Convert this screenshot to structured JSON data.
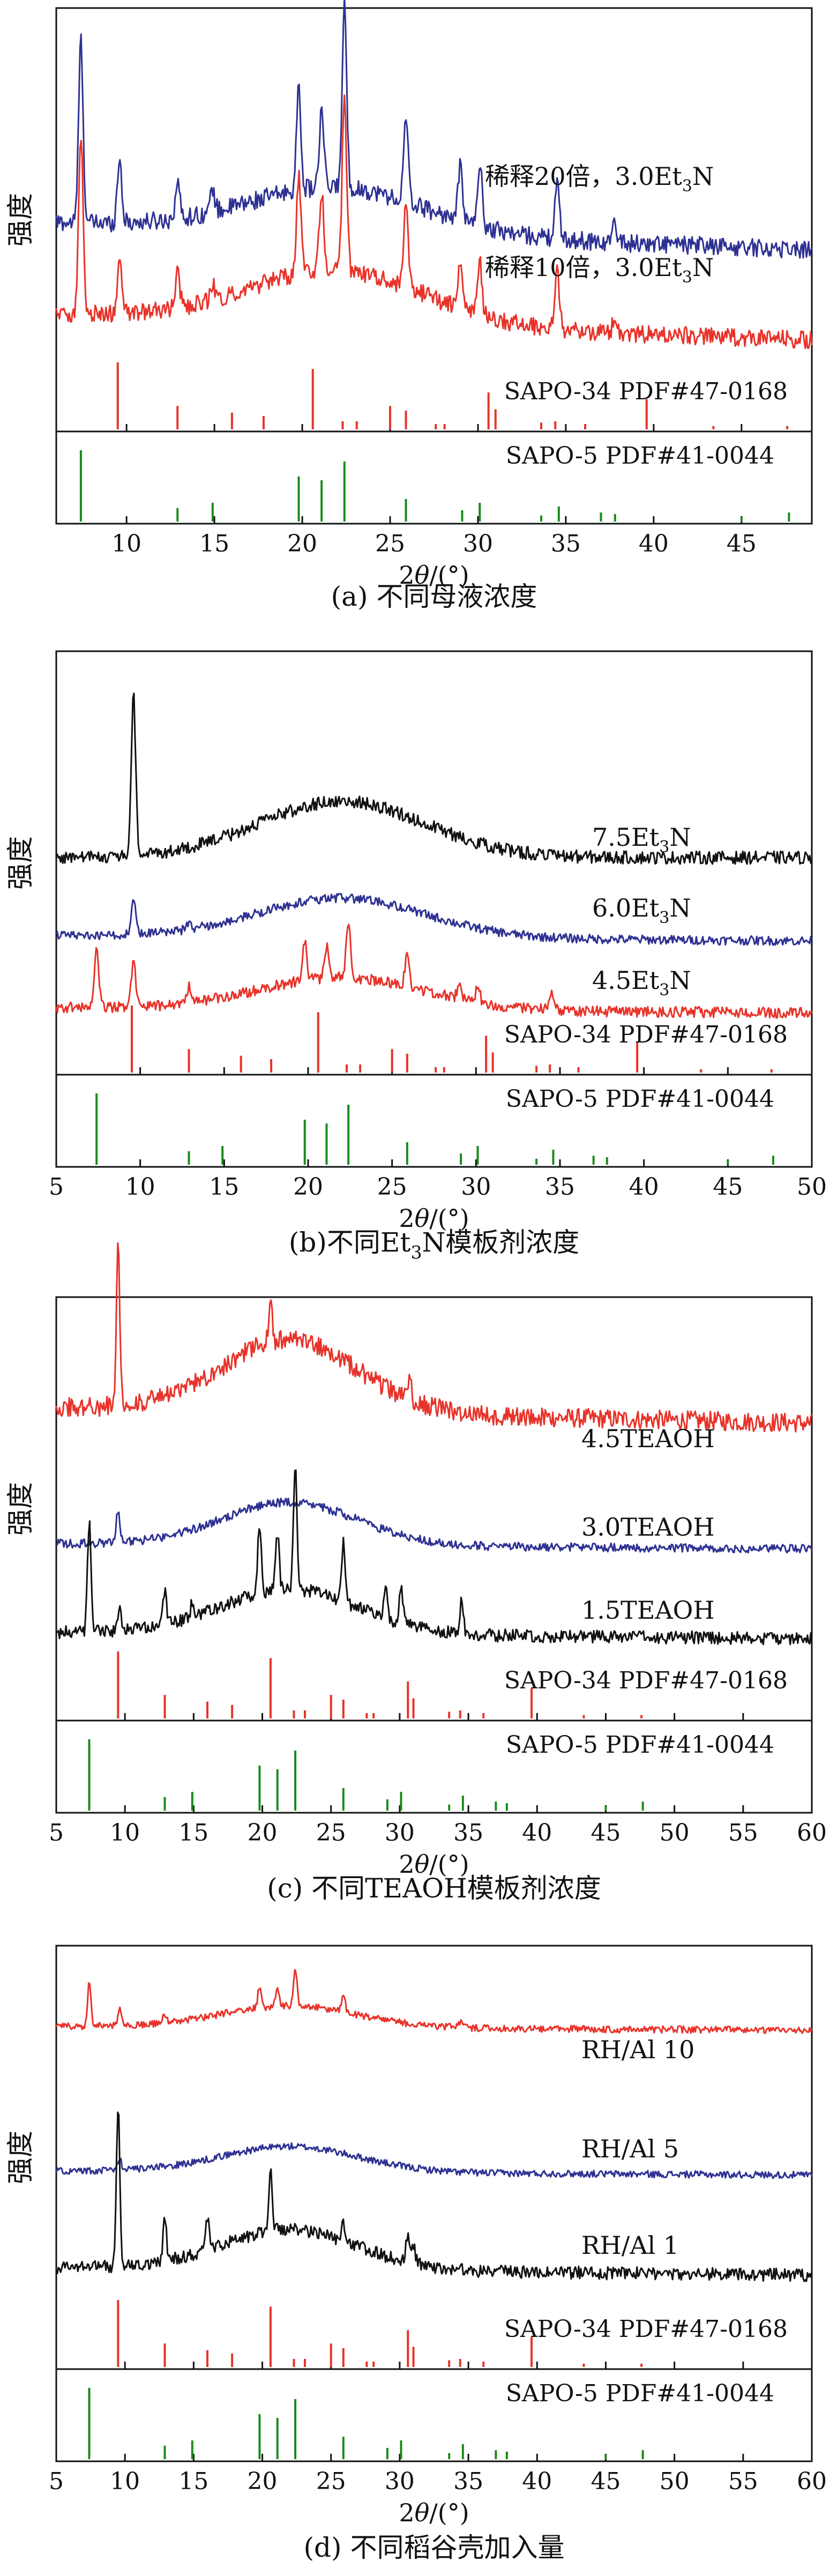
{
  "colors": {
    "red": "#e8332a",
    "blue": "#2e3192",
    "black": "#111111",
    "green": "#1a8a1a",
    "ref_red": "#e8332a"
  },
  "ylabel": "强度",
  "xlabel": "2θ/(°)",
  "ref_labels": {
    "sapo34": "SAPO-34 PDF#47-0168",
    "sapo5": "SAPO-5 PDF#41-0044"
  },
  "sapo34_peaks": [
    [
      9.5,
      1.0
    ],
    [
      12.9,
      0.35
    ],
    [
      16.0,
      0.25
    ],
    [
      17.8,
      0.2
    ],
    [
      20.6,
      0.9
    ],
    [
      22.3,
      0.12
    ],
    [
      23.1,
      0.12
    ],
    [
      25.0,
      0.35
    ],
    [
      25.9,
      0.28
    ],
    [
      27.6,
      0.08
    ],
    [
      28.1,
      0.08
    ],
    [
      30.6,
      0.55
    ],
    [
      31.0,
      0.3
    ],
    [
      33.6,
      0.1
    ],
    [
      34.4,
      0.12
    ],
    [
      36.1,
      0.08
    ],
    [
      39.6,
      0.45
    ],
    [
      43.4,
      0.05
    ],
    [
      47.6,
      0.05
    ]
  ],
  "sapo5_peaks": [
    [
      7.4,
      0.95
    ],
    [
      12.9,
      0.18
    ],
    [
      14.9,
      0.25
    ],
    [
      19.8,
      0.6
    ],
    [
      21.1,
      0.55
    ],
    [
      22.4,
      0.8
    ],
    [
      25.9,
      0.3
    ],
    [
      29.1,
      0.15
    ],
    [
      30.1,
      0.25
    ],
    [
      33.6,
      0.08
    ],
    [
      34.6,
      0.2
    ],
    [
      37.0,
      0.12
    ],
    [
      37.8,
      0.1
    ],
    [
      45.0,
      0.06
    ],
    [
      47.7,
      0.12
    ]
  ],
  "chart_data": [
    {
      "type": "line",
      "panel": "a",
      "caption": "(a)  不同母液浓度",
      "xlim": [
        6,
        49
      ],
      "xticks": [
        10,
        15,
        20,
        25,
        30,
        35,
        40,
        45
      ],
      "series": [
        {
          "name": "稀释20倍，3.0Et₃N",
          "color": "blue",
          "label_line1": "稀释20倍，3.0Et",
          "label_sub": "3",
          "label_tail": "N",
          "peaks": [
            [
              7.4,
              1.0
            ],
            [
              9.6,
              0.35
            ],
            [
              12.9,
              0.2
            ],
            [
              14.9,
              0.12
            ],
            [
              19.8,
              0.55
            ],
            [
              21.1,
              0.42
            ],
            [
              22.4,
              1.0
            ],
            [
              25.9,
              0.45
            ],
            [
              29.0,
              0.3
            ],
            [
              30.1,
              0.35
            ],
            [
              34.5,
              0.3
            ],
            [
              37.8,
              0.1
            ]
          ],
          "hump": 0.25,
          "slope": -0.15,
          "noise": 0.05
        },
        {
          "name": "稀释10倍，3.0Et₃N",
          "color": "red",
          "label_line1": "稀释10倍，3.0Et",
          "label_sub": "3",
          "label_tail": "N",
          "peaks": [
            [
              7.4,
              1.0
            ],
            [
              9.6,
              0.28
            ],
            [
              12.9,
              0.2
            ],
            [
              14.9,
              0.1
            ],
            [
              19.8,
              0.55
            ],
            [
              21.1,
              0.45
            ],
            [
              22.4,
              1.0
            ],
            [
              25.9,
              0.45
            ],
            [
              29.0,
              0.25
            ],
            [
              30.1,
              0.3
            ],
            [
              34.5,
              0.35
            ],
            [
              37.8,
              0.1
            ]
          ],
          "hump": 0.3,
          "slope": -0.15,
          "noise": 0.05
        }
      ]
    },
    {
      "type": "line",
      "panel": "b",
      "caption": "(b)不同Et₃N模板剂浓度",
      "caption_parts": [
        "(b)不同Et",
        "3",
        "N模板剂浓度"
      ],
      "xlim": [
        5,
        50
      ],
      "xticks": [
        5,
        10,
        15,
        20,
        25,
        30,
        35,
        40,
        45,
        50
      ],
      "series": [
        {
          "name": "7.5Et₃N",
          "color": "black",
          "label_line1": "7.5Et",
          "label_sub": "3",
          "label_tail": "N",
          "peaks": [
            [
              9.6,
              1.0
            ]
          ],
          "hump": 0.35,
          "slope": 0.0,
          "noise": 0.04
        },
        {
          "name": "6.0Et₃N",
          "color": "blue",
          "label_line1": "6.0Et",
          "label_sub": "3",
          "label_tail": "N",
          "peaks": [
            [
              9.6,
              0.3
            ],
            [
              12.9,
              0.05
            ]
          ],
          "hump": 0.35,
          "slope": -0.05,
          "noise": 0.04
        },
        {
          "name": "4.5Et₃N",
          "color": "red",
          "label_line1": "4.5Et",
          "label_sub": "3",
          "label_tail": "N",
          "peaks": [
            [
              7.4,
              0.6
            ],
            [
              9.6,
              0.45
            ],
            [
              12.9,
              0.15
            ],
            [
              19.8,
              0.35
            ],
            [
              21.1,
              0.3
            ],
            [
              22.4,
              0.55
            ],
            [
              25.9,
              0.3
            ],
            [
              29.0,
              0.12
            ],
            [
              30.1,
              0.15
            ],
            [
              34.5,
              0.15
            ]
          ],
          "hump": 0.3,
          "slope": -0.05,
          "noise": 0.05
        }
      ]
    },
    {
      "type": "line",
      "panel": "c",
      "caption": "(c)  不同TEAOH模板剂浓度",
      "xlim": [
        5,
        60
      ],
      "xticks": [
        5,
        10,
        15,
        20,
        25,
        30,
        35,
        40,
        45,
        50,
        55,
        60
      ],
      "series": [
        {
          "name": "4.5TEAOH",
          "color": "red",
          "label_line1": "4.5TEAOH",
          "peaks": [
            [
              9.5,
              1.0
            ],
            [
              20.6,
              0.25
            ],
            [
              30.7,
              0.15
            ]
          ],
          "hump": 0.45,
          "slope": -0.1,
          "noise": 0.06
        },
        {
          "name": "3.0TEAOH",
          "color": "blue",
          "label_line1": "3.0TEAOH",
          "peaks": [
            [
              9.5,
              0.3
            ]
          ],
          "hump": 0.4,
          "slope": -0.05,
          "noise": 0.04
        },
        {
          "name": "1.5TEAOH",
          "color": "black",
          "label_line1": "1.5TEAOH",
          "peaks": [
            [
              7.4,
              0.85
            ],
            [
              9.6,
              0.2
            ],
            [
              12.9,
              0.25
            ],
            [
              14.9,
              0.12
            ],
            [
              19.8,
              0.55
            ],
            [
              21.1,
              0.45
            ],
            [
              22.4,
              0.95
            ],
            [
              25.9,
              0.45
            ],
            [
              29.0,
              0.25
            ],
            [
              30.1,
              0.3
            ],
            [
              34.5,
              0.25
            ]
          ],
          "hump": 0.35,
          "slope": -0.05,
          "noise": 0.05
        }
      ]
    },
    {
      "type": "line",
      "panel": "d",
      "caption": "(d)  不同稻谷壳加入量",
      "xlim": [
        5,
        60
      ],
      "xticks": [
        5,
        10,
        15,
        20,
        25,
        30,
        35,
        40,
        45,
        50,
        55,
        60
      ],
      "series": [
        {
          "name": "RH/Al 10",
          "color": "red",
          "label_line1": "RH/Al 10",
          "peaks": [
            [
              7.4,
              0.5
            ],
            [
              9.6,
              0.2
            ],
            [
              12.9,
              0.1
            ],
            [
              19.8,
              0.25
            ],
            [
              21.1,
              0.2
            ],
            [
              22.4,
              0.45
            ],
            [
              25.9,
              0.2
            ],
            [
              34.5,
              0.1
            ]
          ],
          "hump": 0.25,
          "slope": -0.05,
          "noise": 0.04
        },
        {
          "name": "RH/Al 5",
          "color": "blue",
          "label_line1": "RH/Al 5",
          "peaks": [
            [
              9.6,
              0.15
            ]
          ],
          "hump": 0.3,
          "slope": -0.05,
          "noise": 0.04
        },
        {
          "name": "RH/Al 1",
          "color": "black",
          "label_line1": "RH/Al 1",
          "peaks": [
            [
              9.5,
              1.0
            ],
            [
              12.9,
              0.25
            ],
            [
              16.0,
              0.2
            ],
            [
              20.6,
              0.4
            ],
            [
              25.9,
              0.1
            ],
            [
              30.6,
              0.18
            ],
            [
              31.0,
              0.12
            ]
          ],
          "hump": 0.25,
          "slope": -0.05,
          "noise": 0.04
        }
      ]
    }
  ]
}
